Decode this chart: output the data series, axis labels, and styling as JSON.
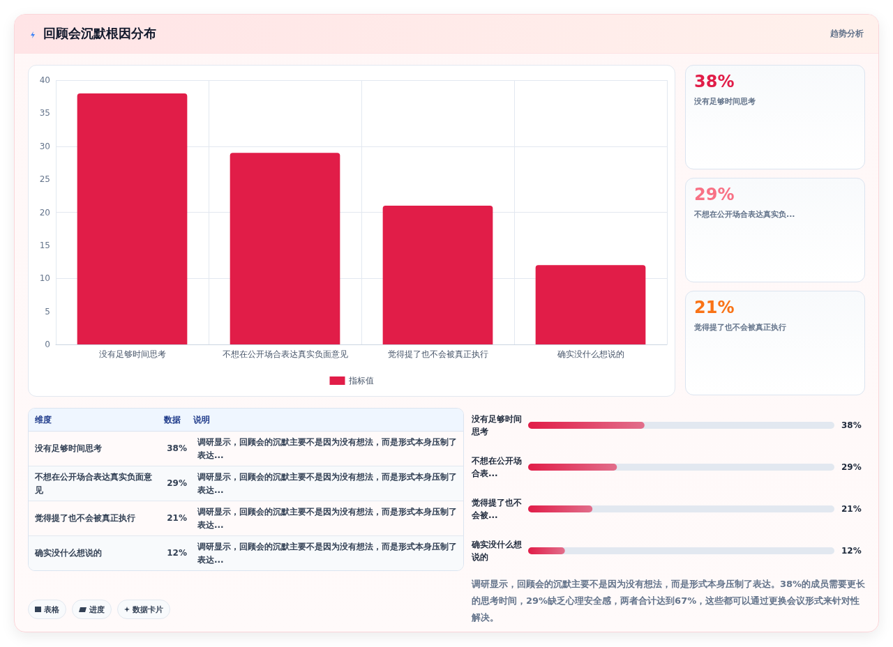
{
  "chart_data": [
    {
      "type": "bar",
      "title": "回顾会沉默根因分布",
      "annotations": [
        "趋势分析"
      ],
      "categories": [
        "没有足够时间思考",
        "不想在公开场合表达真实负面意见",
        "觉得提了也不会被真正执行",
        "确实没什么想说的"
      ],
      "series": [
        {
          "name": "指标值",
          "color": "#e11d48",
          "values": [
            38,
            29,
            21,
            12
          ]
        }
      ],
      "ylim": [
        0,
        40
      ],
      "yticks": [
        0,
        5,
        10,
        15,
        20,
        25,
        30,
        35,
        40
      ],
      "grid": true,
      "legend": "bottom"
    },
    {
      "type": "bar",
      "orientation": "horizontal",
      "categories": [
        "没有足够时间思考",
        "不想在公开场合表...",
        "觉得提了也不会被...",
        "确实没什么想说的"
      ],
      "values": [
        38,
        29,
        21,
        12
      ],
      "value_labels": [
        "38%",
        "29%",
        "21%",
        "12%"
      ],
      "color": "#e11d48",
      "xlim": [
        0,
        100
      ],
      "tick_labels": "y",
      "grid": false,
      "annotations": [
        "调研显示，回顾会的沉默主要不是因为没有想法，而是形式本身压制了表达。38%的成员需要更长的思考时间，29%缺乏心理安全感，两者合计达到67%，这些都可以通过更换会议形式来针对性解决。"
      ]
    },
    {
      "type": "other",
      "annotations": [
        "38%",
        "没有足够时间思考",
        "29%",
        "不想在公开场合表达真实负...",
        "21%",
        "觉得提了也不会被真正执行"
      ]
    },
    {
      "type": "other",
      "categories": [
        "没有足够时间思考",
        "不想在公开场合表达真实负面意见",
        "觉得提了也不会被真正执行",
        "确实没什么想说的"
      ],
      "values": [
        38,
        29,
        21,
        12
      ],
      "value_labels": [
        "38%",
        "29%",
        "21%",
        "12%"
      ],
      "annotations": [
        "维度",
        "数据",
        "说明",
        "调研显示，回顾会的沉默主要不是因为没有想法，而是形式本身压制了表达...",
        "调研显示，回顾会的沉默主要不是因为没有想法，而是形式本身压制了表达...",
        "调研显示，回顾会的沉默主要不是因为没有想法，而是形式本身压制了表达...",
        "调研显示，回顾会的沉默主要不是因为没有想法，而是形式本身压制了表达..."
      ]
    },
    {
      "type": "other",
      "annotations": [
        "表格",
        "进度",
        "数据卡片"
      ]
    }
  ]
}
